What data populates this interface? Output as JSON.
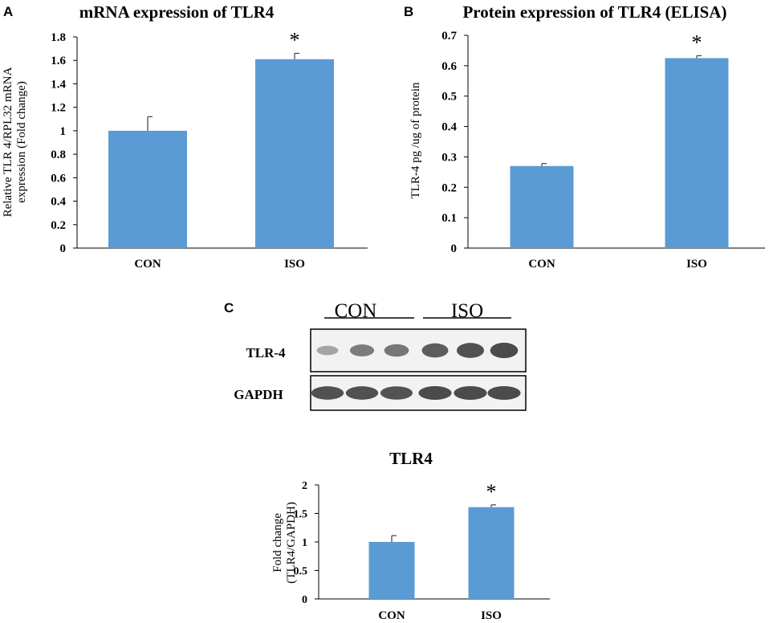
{
  "panel_labels": {
    "a": "A",
    "b": "B",
    "c": "C"
  },
  "colors": {
    "bar": "#5b9bd5",
    "axis": "#000000",
    "blot_bg": "#f2f2f2",
    "band": "#3a3a3a"
  },
  "chart_data": [
    {
      "id": "A",
      "type": "bar",
      "title": "mRNA expression of  TLR4",
      "xlabel": "",
      "ylabel": [
        "Relative TLR 4/RPL32 mRNA",
        "expression (Fold change)"
      ],
      "categories": [
        "CON",
        "ISO"
      ],
      "values": [
        1.0,
        1.61
      ],
      "errors": [
        0.12,
        0.05
      ],
      "significance": [
        "",
        "*"
      ],
      "ylim": [
        0,
        1.8
      ],
      "yticks": [
        0,
        0.2,
        0.4,
        0.6,
        0.8,
        1,
        1.2,
        1.4,
        1.6,
        1.8
      ],
      "ytick_labels": [
        "0",
        "0.2",
        "0.4",
        "0.6",
        "0.8",
        "1",
        "1.2",
        "1.4",
        "1.6",
        "1.8"
      ],
      "grid": false
    },
    {
      "id": "B",
      "type": "bar",
      "title": "Protein expression of TLR4 (ELISA)",
      "xlabel": "",
      "ylabel": [
        "TLR-4 pg /ug of protein"
      ],
      "categories": [
        "CON",
        "ISO"
      ],
      "values": [
        0.27,
        0.625
      ],
      "errors": [
        0.008,
        0.008
      ],
      "significance": [
        "",
        "*"
      ],
      "ylim": [
        0,
        0.7
      ],
      "yticks": [
        0,
        0.1,
        0.2,
        0.3,
        0.4,
        0.5,
        0.6,
        0.7
      ],
      "ytick_labels": [
        "0",
        "0.1",
        "0.2",
        "0.3",
        "0.4",
        "0.5",
        "0.6",
        "0.7"
      ],
      "grid": false
    },
    {
      "id": "C",
      "type": "bar",
      "title": "TLR4",
      "xlabel": "",
      "ylabel": [
        "Fold change",
        "(TLR4/GAPDH)"
      ],
      "categories": [
        "CON",
        "ISO"
      ],
      "values": [
        1.0,
        1.61
      ],
      "errors": [
        0.11,
        0.04
      ],
      "significance": [
        "",
        "*"
      ],
      "ylim": [
        0,
        2
      ],
      "yticks": [
        0,
        0.5,
        1,
        1.5,
        2
      ],
      "ytick_labels": [
        "0",
        "0.5",
        "1",
        "1.5",
        "2"
      ],
      "grid": false
    }
  ],
  "western_blot": {
    "group_labels": [
      "CON",
      "ISO"
    ],
    "rows": [
      {
        "label": "TLR-4",
        "intensities": [
          0.25,
          0.55,
          0.6,
          0.8,
          0.9,
          0.95
        ]
      },
      {
        "label": "GAPDH",
        "intensities": [
          0.9,
          0.9,
          0.88,
          0.95,
          0.95,
          0.95
        ]
      }
    ]
  }
}
